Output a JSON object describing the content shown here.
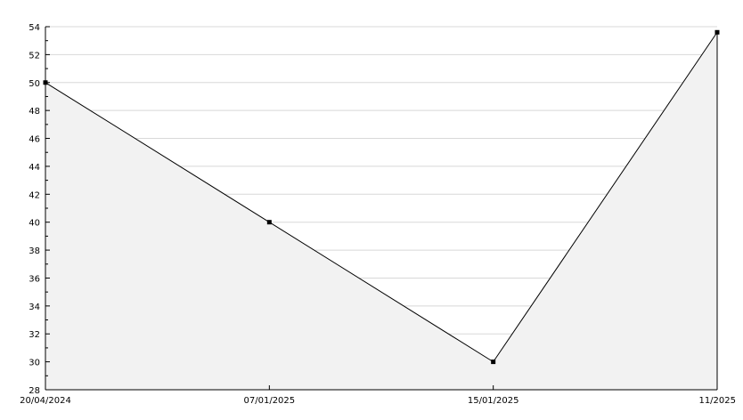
{
  "chart_data": {
    "type": "area",
    "categories": [
      "20/04/2024",
      "07/01/2025",
      "15/01/2025",
      "11/2025"
    ],
    "values": [
      50,
      40,
      30,
      53.6
    ],
    "ylim": [
      28,
      54
    ],
    "yticks": [
      28,
      30,
      32,
      34,
      36,
      38,
      40,
      42,
      44,
      46,
      48,
      50,
      52,
      54
    ],
    "title": "",
    "xlabel": "",
    "ylabel": "",
    "grid": true,
    "colors": {
      "line": "#000000",
      "fill": "#f2f2f2",
      "grid": "#d8d8d8"
    }
  }
}
